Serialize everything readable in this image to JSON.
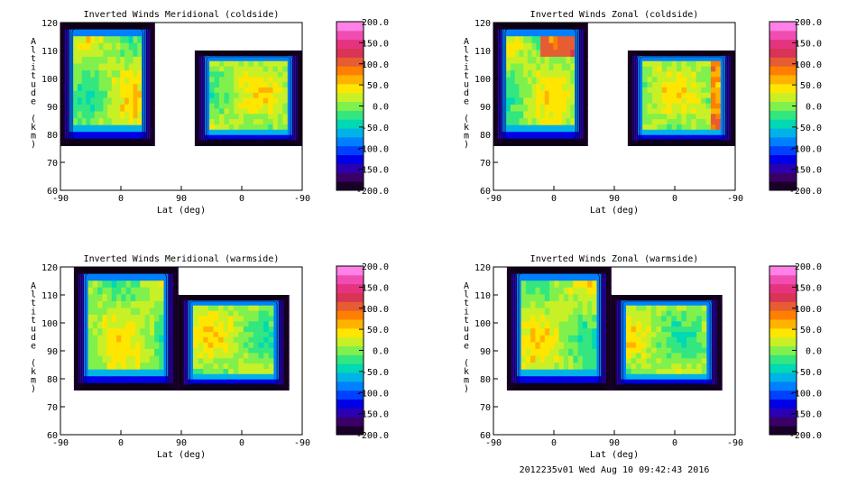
{
  "footer": "2012235v01 Wed Aug 10 09:42:43 2016",
  "colorbar": {
    "ticks": [
      "200.0",
      "150.0",
      "100.0",
      "50.0",
      "0.0",
      "-50.0",
      "-100.0",
      "-150.0",
      "-200.0"
    ],
    "colors": [
      "#1a0029",
      "#3b0066",
      "#2b00b3",
      "#0000e6",
      "#0040ff",
      "#0080ff",
      "#00b3e6",
      "#00d9b3",
      "#33e680",
      "#80f04d",
      "#c8f026",
      "#ffe600",
      "#ffb300",
      "#ff8000",
      "#e65c33",
      "#d93355",
      "#e63380",
      "#f04db3",
      "#ff80e6"
    ]
  },
  "chart_data": [
    {
      "type": "heatmap",
      "title": "Inverted Winds Meridional (coldside)",
      "xlabel": "Lat (deg)",
      "ylabel": "Altitude (km)",
      "xticks": [
        "-90",
        "0",
        "90",
        "0",
        "-90"
      ],
      "yticks": [
        "60",
        "70",
        "80",
        "90",
        "100",
        "110",
        "120"
      ],
      "ylim": [
        60,
        120
      ],
      "colorbar_range": [
        -200,
        200
      ],
      "regions": [
        {
          "lat_start": -90,
          "lat_end": 50,
          "alt_bottom": 76,
          "alt_top": 120
        },
        {
          "lat_start": 70,
          "lat_end": -90,
          "alt_bottom": 76,
          "alt_top": 110
        }
      ]
    },
    {
      "type": "heatmap",
      "title": "Inverted Winds Zonal (coldside)",
      "xlabel": "Lat (deg)",
      "ylabel": "Altitude (km)",
      "xticks": [
        "-90",
        "0",
        "90",
        "0",
        "-90"
      ],
      "yticks": [
        "60",
        "70",
        "80",
        "90",
        "100",
        "110",
        "120"
      ],
      "ylim": [
        60,
        120
      ],
      "colorbar_range": [
        -200,
        200
      ],
      "regions": [
        {
          "lat_start": -90,
          "lat_end": 50,
          "alt_bottom": 76,
          "alt_top": 120
        },
        {
          "lat_start": 70,
          "lat_end": -90,
          "alt_bottom": 76,
          "alt_top": 110
        }
      ]
    },
    {
      "type": "heatmap",
      "title": "Inverted Winds Meridional (warmside)",
      "xlabel": "Lat (deg)",
      "ylabel": "Altitude (km)",
      "xticks": [
        "-90",
        "0",
        "90",
        "0",
        "-90"
      ],
      "yticks": [
        "60",
        "70",
        "80",
        "90",
        "100",
        "110",
        "120"
      ],
      "ylim": [
        60,
        120
      ],
      "colorbar_range": [
        -200,
        200
      ],
      "regions": [
        {
          "lat_start": -70,
          "lat_end": 85,
          "alt_bottom": 76,
          "alt_top": 120
        },
        {
          "lat_start": 95,
          "lat_end": -70,
          "alt_bottom": 76,
          "alt_top": 110
        }
      ]
    },
    {
      "type": "heatmap",
      "title": "Inverted Winds Zonal (warmside)",
      "xlabel": "Lat (deg)",
      "ylabel": "Altitude (km)",
      "xticks": [
        "-90",
        "0",
        "90",
        "0",
        "-90"
      ],
      "yticks": [
        "60",
        "70",
        "80",
        "90",
        "100",
        "110",
        "120"
      ],
      "ylim": [
        60,
        120
      ],
      "colorbar_range": [
        -200,
        200
      ],
      "regions": [
        {
          "lat_start": -70,
          "lat_end": 85,
          "alt_bottom": 76,
          "alt_top": 120
        },
        {
          "lat_start": 95,
          "lat_end": -70,
          "alt_bottom": 76,
          "alt_top": 110
        }
      ]
    }
  ]
}
